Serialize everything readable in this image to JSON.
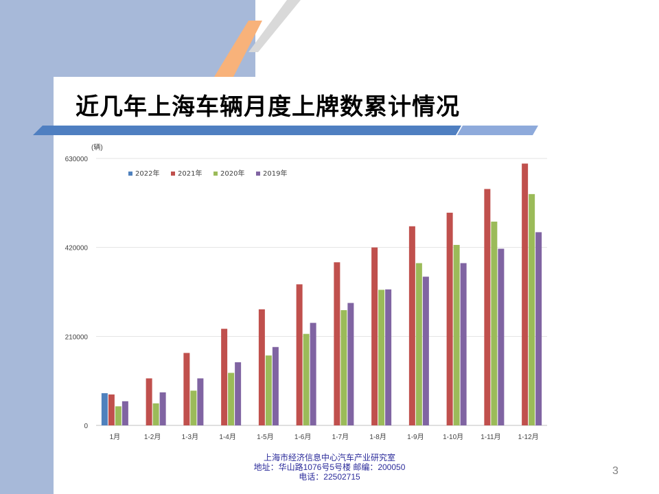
{
  "slide": {
    "title": "近几年上海车辆月度上牌数累计情况",
    "page_number": "3",
    "footer": {
      "line1": "上海市经济信息中心汽车产业研究室",
      "line2": "地址：华山路1076号5号楼   邮编：200050",
      "line3": "电话：22502715"
    }
  },
  "colors": {
    "band": "#a7b9d9",
    "stripe_orange": "#f8b27a",
    "stripe_gray": "#d9d9d9",
    "bar_blue": "#5b84c4"
  },
  "chart_data": {
    "type": "bar",
    "title": "",
    "ylabel": "(辆)",
    "xlabel": "",
    "ylim": [
      0,
      630000
    ],
    "yticks": [
      "0",
      "210000",
      "420000",
      "630000"
    ],
    "ytick_values": [
      0,
      210000,
      420000,
      630000
    ],
    "grid": true,
    "legend_position": "top-left",
    "categories": [
      "1月",
      "1-2月",
      "1-3月",
      "1-4月",
      "1-5月",
      "1-6月",
      "1-7月",
      "1-8月",
      "1-9月",
      "1-10月",
      "1-11月",
      "1-12月"
    ],
    "series": [
      {
        "name": "2022年",
        "color": "#4f81bd",
        "values": [
          76000,
          null,
          null,
          null,
          null,
          null,
          null,
          null,
          null,
          null,
          null,
          null
        ]
      },
      {
        "name": "2021年",
        "color": "#c0504d",
        "values": [
          73000,
          111000,
          171000,
          228000,
          274000,
          333000,
          385000,
          420000,
          470000,
          502000,
          558000,
          618000
        ]
      },
      {
        "name": "2020年",
        "color": "#9bbb59",
        "values": [
          45000,
          52000,
          82000,
          124000,
          165000,
          216000,
          272000,
          320000,
          383000,
          426000,
          481000,
          546000
        ]
      },
      {
        "name": "2019年",
        "color": "#8064a2",
        "values": [
          57000,
          78000,
          111000,
          149000,
          185000,
          242000,
          289000,
          321000,
          351000,
          383000,
          417000,
          456000
        ]
      }
    ]
  }
}
